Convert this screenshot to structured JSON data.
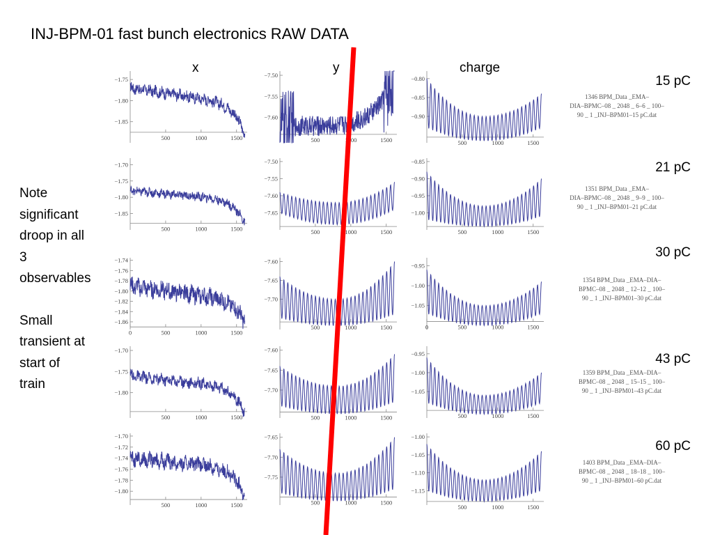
{
  "slide": {
    "title": "INJ-BPM-01 fast bunch electronics RAW DATA",
    "column_headers": [
      "x",
      "y",
      "charge"
    ],
    "note_lines": [
      "Note",
      "significant",
      "droop in all",
      "3",
      "observables"
    ],
    "transient_lines": [
      "Small",
      "transient at",
      "start of",
      "train"
    ],
    "rows": [
      {
        "charge_label": "15 pC",
        "file_lines": [
          "1346 BPM_Data _EMA–",
          "DIA–BPMC–08 _ 2048 _ 6–6 _ 100–",
          "90 _ 1 _INJ–BPM01–15 pC.dat"
        ]
      },
      {
        "charge_label": "21 pC",
        "file_lines": [
          "1351 BPM_Data _EMA–",
          "DIA–BPMC–08 _ 2048 _ 9–9 _ 100–",
          "90 _ 1 _INJ–BPM01–21 pC.dat"
        ]
      },
      {
        "charge_label": "30 pC",
        "file_lines": [
          "1354 BPM_Data _EMA–DIA–",
          "BPMC–08 _ 2048 _ 12–12 _ 100–",
          "90 _ 1 _INJ–BPM01–30 pC.dat"
        ]
      },
      {
        "charge_label": "43 pC",
        "file_lines": [
          "1359 BPM_Data _EMA–DIA–",
          "BPMC–08 _ 2048 _ 15–15 _ 100–",
          "90 _ 1 _INJ–BPM01–43 pC.dat"
        ]
      },
      {
        "charge_label": "60 pC",
        "file_lines": [
          "1403 BPM_Data _EMA–DIA–",
          "BPMC–08 _ 2048 _ 18–18 _ 100–",
          "90 _ 1 _INJ–BPM01–60 pC.dat"
        ]
      }
    ]
  },
  "chart_data": [
    {
      "type": "line",
      "panel": "x",
      "charge": "15 pC",
      "x_ticks": [
        500,
        1000,
        1500
      ],
      "xlim": [
        0,
        1650
      ],
      "y_ticks": [
        -1.75,
        -1.8,
        -1.85
      ],
      "ylim": [
        -1.73,
        -1.9
      ],
      "axis_cross": -1.875,
      "pattern": "noisy",
      "start": -1.77,
      "end": -1.88,
      "droop": 0.04,
      "amp": 0.012
    },
    {
      "type": "line",
      "panel": "y",
      "charge": "15 pC",
      "x_ticks": [
        500,
        1000,
        1500
      ],
      "xlim": [
        0,
        1650
      ],
      "y_ticks": [
        -7.5,
        -7.55,
        -7.6
      ],
      "ylim": [
        -7.49,
        -7.66
      ],
      "axis_cross": -7.64,
      "pattern": "noisy_big",
      "start": -7.62,
      "end": -7.5,
      "amp": 0.08
    },
    {
      "type": "line",
      "panel": "charge",
      "charge": "15 pC",
      "x_ticks": [
        500,
        1000,
        1500
      ],
      "xlim": [
        0,
        1650
      ],
      "y_ticks": [
        -0.8,
        -0.85,
        -0.9
      ],
      "ylim": [
        -0.78,
        -0.97
      ],
      "axis_cross": -0.955,
      "pattern": "osc",
      "top_start": -0.8,
      "top_min": -0.9,
      "top_end": -0.84,
      "bot_start": -0.93,
      "bot_min": -0.965,
      "bot_end": -0.93
    },
    {
      "type": "line",
      "panel": "x",
      "charge": "21 pC",
      "x_ticks": [
        500,
        1000,
        1500
      ],
      "xlim": [
        0,
        1650
      ],
      "y_ticks": [
        -1.7,
        -1.75,
        -1.8,
        -1.85
      ],
      "ylim": [
        -1.68,
        -1.9
      ],
      "axis_cross": -1.88,
      "pattern": "noisy",
      "start": -1.78,
      "end": -1.88,
      "droop": 0.03,
      "amp": 0.012
    },
    {
      "type": "line",
      "panel": "y",
      "charge": "21 pC",
      "x_ticks": [
        500,
        1000,
        1500
      ],
      "xlim": [
        0,
        1650
      ],
      "y_ticks": [
        -7.5,
        -7.55,
        -7.6,
        -7.65
      ],
      "ylim": [
        -7.49,
        -7.7
      ],
      "axis_cross": -7.69,
      "pattern": "osc",
      "top_start": -7.59,
      "top_min": -7.62,
      "top_end": -7.56,
      "bot_start": -7.65,
      "bot_min": -7.685,
      "bot_end": -7.64
    },
    {
      "type": "line",
      "panel": "charge",
      "charge": "21 pC",
      "x_ticks": [
        500,
        1000,
        1500
      ],
      "xlim": [
        0,
        1650
      ],
      "y_ticks": [
        -0.85,
        -0.9,
        -0.95,
        -1.0
      ],
      "ylim": [
        -0.84,
        -1.05
      ],
      "axis_cross": -1.04,
      "pattern": "osc",
      "top_start": -0.88,
      "top_min": -0.98,
      "top_end": -0.9,
      "bot_start": -1.02,
      "bot_min": -1.04,
      "bot_end": -1.01
    },
    {
      "type": "line",
      "panel": "x",
      "charge": "30 pC",
      "x_ticks": [
        0,
        500,
        1000,
        1500
      ],
      "xlim": [
        0,
        1650
      ],
      "y_ticks": [
        -1.74,
        -1.76,
        -1.78,
        -1.8,
        -1.82,
        -1.84,
        -1.86
      ],
      "ylim": [
        -1.735,
        -1.875
      ],
      "axis_cross": -1.87,
      "pattern": "noisy",
      "start": -1.79,
      "end": -1.86,
      "droop": 0.03,
      "amp": 0.015
    },
    {
      "type": "line",
      "panel": "y",
      "charge": "30 pC",
      "x_ticks": [
        500,
        1000,
        1500
      ],
      "xlim": [
        0,
        1650
      ],
      "y_ticks": [
        -7.6,
        -7.65,
        -7.7
      ],
      "ylim": [
        -7.59,
        -7.78
      ],
      "axis_cross": -7.76,
      "pattern": "osc",
      "top_start": -7.64,
      "top_min": -7.7,
      "top_end": -7.6,
      "bot_start": -7.75,
      "bot_min": -7.77,
      "bot_end": -7.74
    },
    {
      "type": "line",
      "panel": "charge",
      "charge": "30 pC",
      "x_ticks": [
        0,
        500,
        1000,
        1500
      ],
      "xlim": [
        0,
        1650
      ],
      "y_ticks": [
        -0.95,
        -1.0,
        -1.05
      ],
      "ylim": [
        -0.93,
        -1.11
      ],
      "axis_cross": -1.09,
      "pattern": "osc",
      "top_start": -0.96,
      "top_min": -1.05,
      "top_end": -0.99,
      "bot_start": -1.07,
      "bot_min": -1.1,
      "bot_end": -1.07
    },
    {
      "type": "line",
      "panel": "x",
      "charge": "43 pC",
      "x_ticks": [
        500,
        1000,
        1500
      ],
      "xlim": [
        0,
        1650
      ],
      "y_ticks": [
        -1.7,
        -1.75,
        -1.8
      ],
      "ylim": [
        -1.69,
        -1.86
      ],
      "axis_cross": -1.845,
      "pattern": "noisy",
      "start": -1.76,
      "end": -1.85,
      "droop": 0.03,
      "amp": 0.012
    },
    {
      "type": "line",
      "panel": "y",
      "charge": "43 pC",
      "x_ticks": [
        500,
        1000,
        1500
      ],
      "xlim": [
        0,
        1650
      ],
      "y_ticks": [
        -7.6,
        -7.65,
        -7.7
      ],
      "ylim": [
        -7.59,
        -7.77
      ],
      "axis_cross": -7.755,
      "pattern": "osc",
      "top_start": -7.64,
      "top_min": -7.69,
      "top_end": -7.61,
      "bot_start": -7.74,
      "bot_min": -7.76,
      "bot_end": -7.73
    },
    {
      "type": "line",
      "panel": "charge",
      "charge": "43 pC",
      "x_ticks": [
        500,
        1000,
        1500
      ],
      "xlim": [
        0,
        1650
      ],
      "y_ticks": [
        -0.95,
        -1.0,
        -1.05
      ],
      "ylim": [
        -0.93,
        -1.12
      ],
      "axis_cross": -1.1,
      "pattern": "osc",
      "top_start": -0.96,
      "top_min": -1.06,
      "top_end": -1.0,
      "bot_start": -1.08,
      "bot_min": -1.11,
      "bot_end": -1.08
    },
    {
      "type": "line",
      "panel": "x",
      "charge": "60 pC",
      "x_ticks": [
        500,
        1000,
        1500
      ],
      "xlim": [
        0,
        1650
      ],
      "y_ticks": [
        -1.7,
        -1.72,
        -1.74,
        -1.76,
        -1.78,
        -1.8
      ],
      "ylim": [
        -1.695,
        -1.825
      ],
      "axis_cross": -1.815,
      "pattern": "noisy",
      "start": -1.74,
      "end": -1.81,
      "droop": 0.02,
      "amp": 0.012
    },
    {
      "type": "line",
      "panel": "y",
      "charge": "60 pC",
      "x_ticks": [
        500,
        1000,
        1500
      ],
      "xlim": [
        0,
        1650
      ],
      "y_ticks": [
        -7.65,
        -7.7,
        -7.75
      ],
      "ylim": [
        -7.64,
        -7.82
      ],
      "axis_cross": -7.8,
      "pattern": "osc",
      "top_start": -7.68,
      "top_min": -7.74,
      "top_end": -7.65,
      "bot_start": -7.79,
      "bot_min": -7.81,
      "bot_end": -7.78
    },
    {
      "type": "line",
      "panel": "charge",
      "charge": "60 pC",
      "x_ticks": [
        500,
        1000,
        1500
      ],
      "xlim": [
        0,
        1650
      ],
      "y_ticks": [
        -1.0,
        -1.05,
        -1.1,
        -1.15
      ],
      "ylim": [
        -0.99,
        -1.19
      ],
      "axis_cross": -1.18,
      "pattern": "osc",
      "top_start": -1.02,
      "top_min": -1.12,
      "top_end": -1.04,
      "bot_start": -1.15,
      "bot_min": -1.18,
      "bot_end": -1.15
    }
  ],
  "colors": {
    "trace": "#3a3d9b",
    "axis": "#8a8a8a",
    "tick_text": "#444444",
    "annotation_line": "#ff0000"
  }
}
